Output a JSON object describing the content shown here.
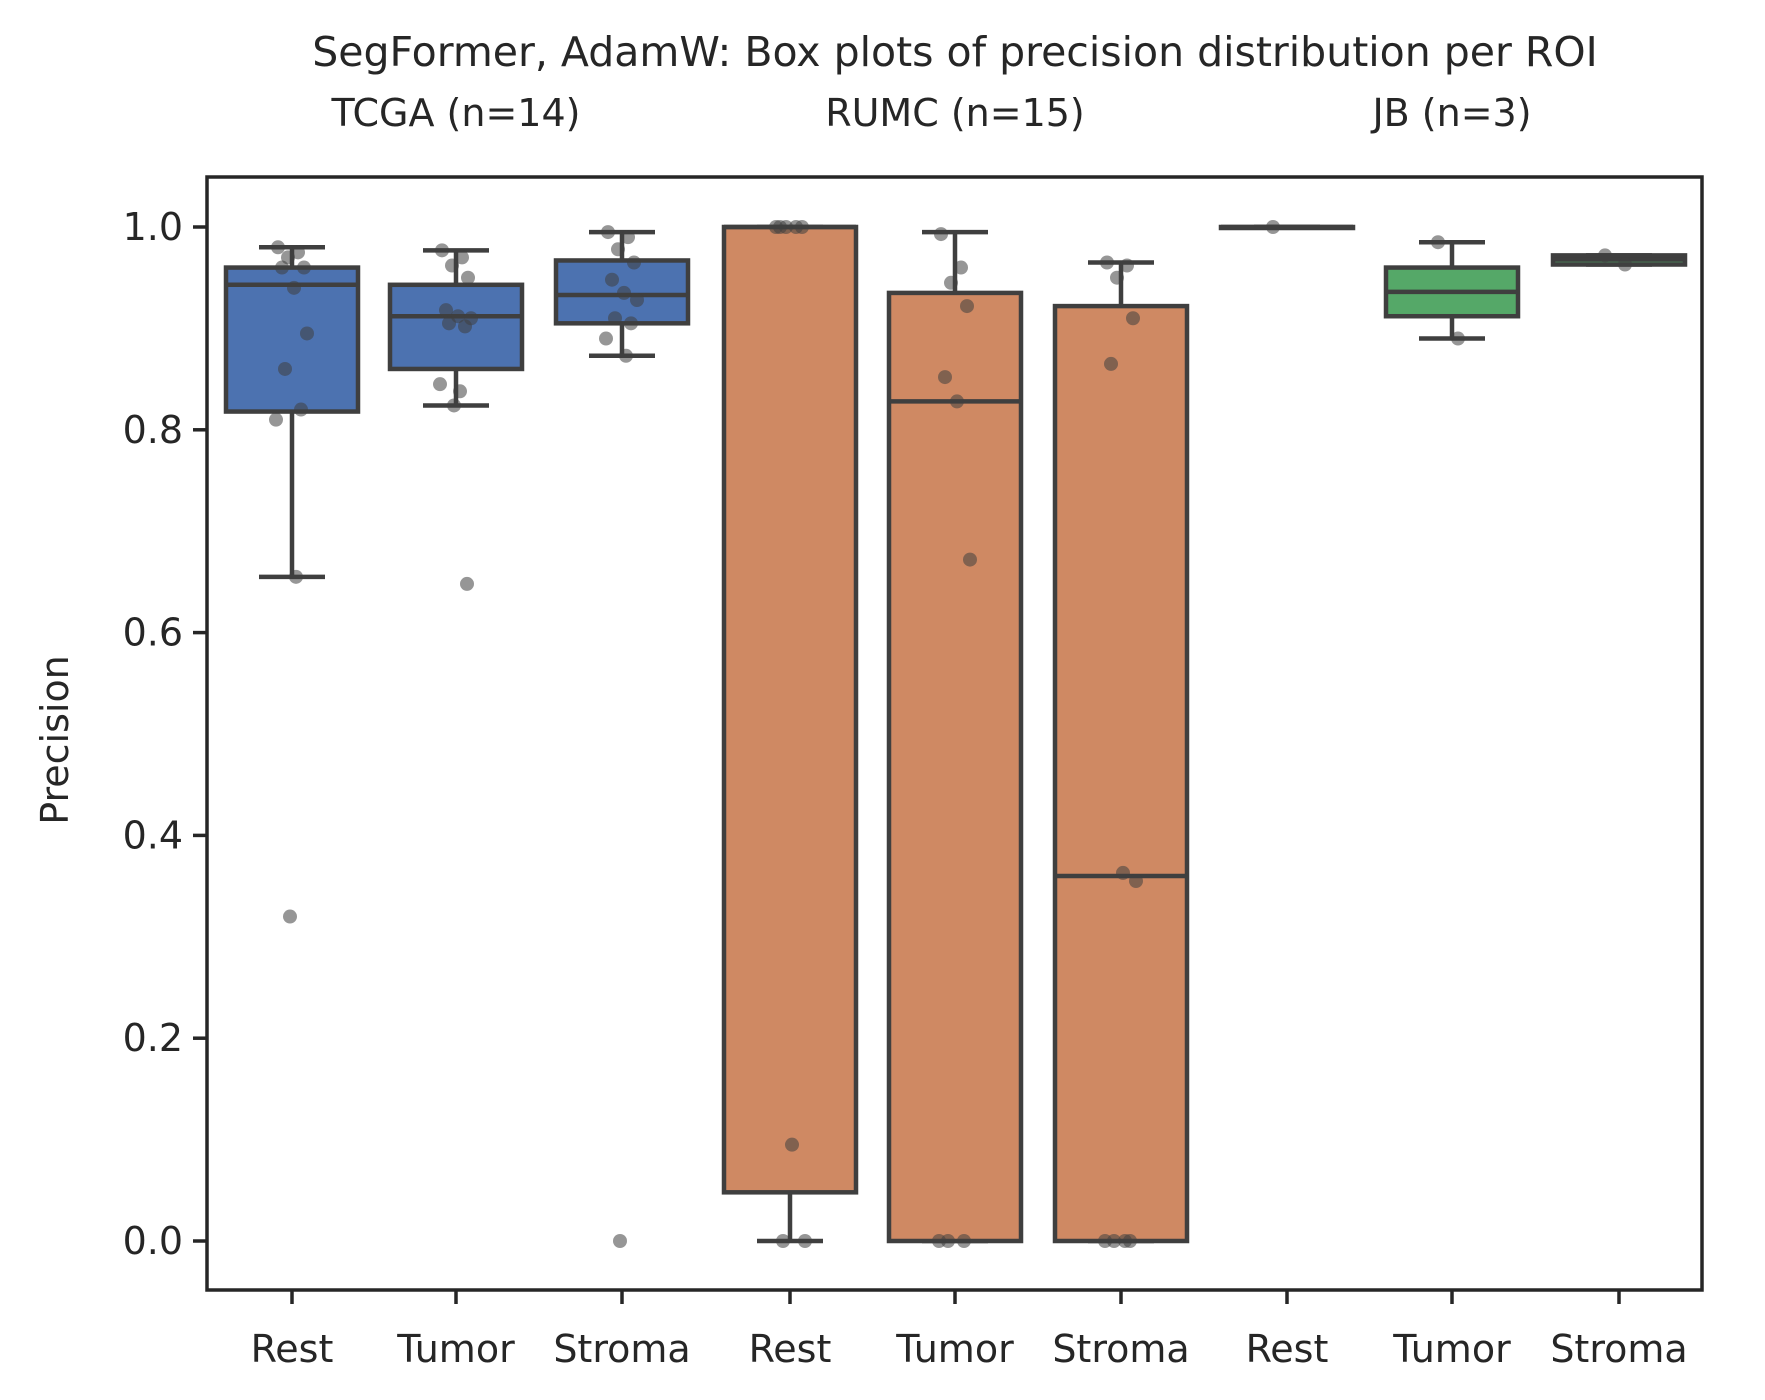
{
  "chart_data": {
    "type": "box",
    "title": "SegFormer, AdamW: Box plots of precision distribution per ROI",
    "ylabel": "Precision",
    "xlabel": "",
    "ylim": [
      -0.05,
      1.05
    ],
    "yticks": [
      "0.0",
      "0.2",
      "0.4",
      "0.6",
      "0.8",
      "1.0"
    ],
    "ytick_values": [
      0.0,
      0.2,
      0.4,
      0.6,
      0.8,
      1.0
    ],
    "grid": false,
    "groups": [
      {
        "label": "TCGA (n=14)",
        "color": "#4c72b0",
        "boxes": [
          {
            "category": "Rest",
            "whisker_low": 0.655,
            "q1": 0.818,
            "median": 0.943,
            "q3": 0.96,
            "whisker_high": 0.98,
            "points": [
              0.98,
              0.975,
              0.97,
              0.96,
              0.96,
              0.94,
              0.895,
              0.86,
              0.82,
              0.81,
              0.655,
              0.32
            ]
          },
          {
            "category": "Tumor",
            "whisker_low": 0.824,
            "q1": 0.86,
            "median": 0.912,
            "q3": 0.943,
            "whisker_high": 0.977,
            "points": [
              0.977,
              0.97,
              0.962,
              0.95,
              0.918,
              0.912,
              0.91,
              0.905,
              0.902,
              0.845,
              0.838,
              0.824,
              0.648
            ]
          },
          {
            "category": "Stroma",
            "whisker_low": 0.873,
            "q1": 0.905,
            "median": 0.933,
            "q3": 0.967,
            "whisker_high": 0.995,
            "points": [
              0.995,
              0.99,
              0.978,
              0.965,
              0.948,
              0.935,
              0.928,
              0.91,
              0.905,
              0.89,
              0.873,
              0.0
            ]
          }
        ]
      },
      {
        "label": "RUMC (n=15)",
        "color": "#cf8963",
        "boxes": [
          {
            "category": "Rest",
            "whisker_low": 0.0,
            "q1": 0.048,
            "median": 1.0,
            "q3": 1.0,
            "whisker_high": 1.0,
            "points": [
              1.0,
              1.0,
              1.0,
              1.0,
              1.0,
              0.095,
              0.0,
              0.0
            ]
          },
          {
            "category": "Tumor",
            "whisker_low": 0.0,
            "q1": 0.0,
            "median": 0.828,
            "q3": 0.935,
            "whisker_high": 0.995,
            "points": [
              0.993,
              0.96,
              0.945,
              0.922,
              0.852,
              0.828,
              0.672,
              0.0,
              0.0,
              0.0
            ]
          },
          {
            "category": "Stroma",
            "whisker_low": 0.0,
            "q1": 0.0,
            "median": 0.36,
            "q3": 0.922,
            "whisker_high": 0.965,
            "points": [
              0.965,
              0.962,
              0.95,
              0.91,
              0.865,
              0.363,
              0.355,
              0.0,
              0.0,
              0.0,
              0.0
            ]
          }
        ]
      },
      {
        "label": "JB (n=3)",
        "color": "#55a868",
        "boxes": [
          {
            "category": "Rest",
            "whisker_low": 1.0,
            "q1": 1.0,
            "median": 1.0,
            "q3": 1.0,
            "whisker_high": 1.0,
            "points": [
              1.0
            ]
          },
          {
            "category": "Tumor",
            "whisker_low": 0.89,
            "q1": 0.912,
            "median": 0.936,
            "q3": 0.96,
            "whisker_high": 0.985,
            "points": [
              0.985,
              0.89
            ]
          },
          {
            "category": "Stroma",
            "whisker_low": 0.963,
            "q1": 0.963,
            "median": 0.968,
            "q3": 0.972,
            "whisker_high": 0.972,
            "points": [
              0.972,
              0.963
            ]
          }
        ]
      }
    ]
  }
}
